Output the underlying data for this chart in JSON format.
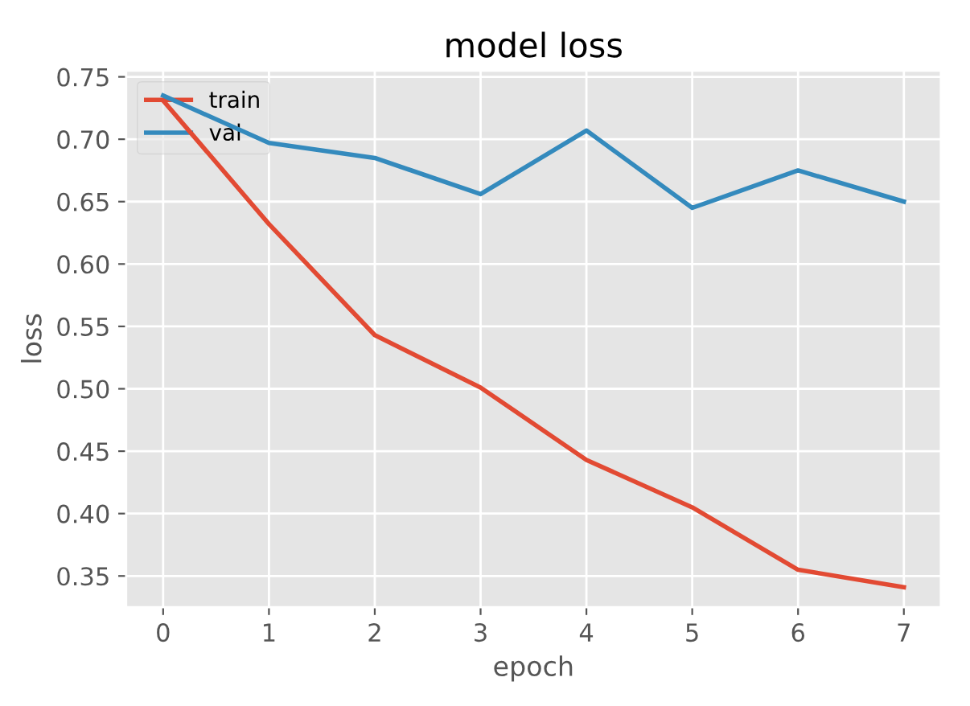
{
  "chart_data": {
    "type": "line",
    "title": "model loss",
    "xlabel": "epoch",
    "ylabel": "loss",
    "x": [
      0,
      1,
      2,
      3,
      4,
      5,
      6,
      7
    ],
    "series": [
      {
        "name": "train",
        "color": "#e24a33",
        "values": [
          0.731,
          0.632,
          0.543,
          0.501,
          0.443,
          0.405,
          0.355,
          0.341
        ]
      },
      {
        "name": "val",
        "color": "#348abd",
        "values": [
          0.735,
          0.697,
          0.685,
          0.656,
          0.707,
          0.645,
          0.675,
          0.65
        ]
      }
    ],
    "xlim": [
      -0.35,
      7.35
    ],
    "ylim": [
      0.325,
      0.755
    ],
    "xticks": [
      0,
      1,
      2,
      3,
      4,
      5,
      6,
      7
    ],
    "yticks": [
      {
        "value": 0.35,
        "label": "0.35"
      },
      {
        "value": 0.4,
        "label": "0.40"
      },
      {
        "value": 0.45,
        "label": "0.45"
      },
      {
        "value": 0.5,
        "label": "0.50"
      },
      {
        "value": 0.55,
        "label": "0.55"
      },
      {
        "value": 0.6,
        "label": "0.60"
      },
      {
        "value": 0.65,
        "label": "0.65"
      },
      {
        "value": 0.7,
        "label": "0.70"
      },
      {
        "value": 0.75,
        "label": "0.75"
      }
    ],
    "grid": true,
    "legend": "top left"
  }
}
